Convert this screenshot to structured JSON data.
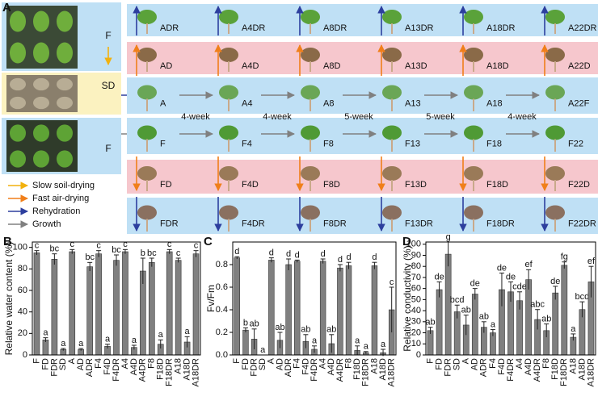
{
  "panel_a": {
    "label": "A",
    "left_labels": [
      "F",
      "SD",
      "F"
    ],
    "rows": [
      [
        "ADR",
        "A4DR",
        "A8DR",
        "A13DR",
        "A18DR",
        "A22DR"
      ],
      [
        "AD",
        "A4D",
        "A8D",
        "A13D",
        "A18D",
        "A22D"
      ],
      [
        "A",
        "A4",
        "A8",
        "A13",
        "A18",
        "A22F"
      ],
      [
        "F",
        "F4",
        "F8",
        "F13",
        "F18",
        "F22"
      ],
      [
        "FD",
        "F4D",
        "F8D",
        "F13D",
        "F18D",
        "F22D"
      ],
      [
        "FDR",
        "F4DR",
        "F8DR",
        "F13DR",
        "F18DR",
        "F22DR"
      ]
    ],
    "intervals": [
      "4-week",
      "4-week",
      "5-week",
      "5-week",
      "4-week"
    ],
    "legend": [
      {
        "name": "Slow soil-drying",
        "color": "#f2b10e"
      },
      {
        "name": "Fast air-drying",
        "color": "#f07f1a"
      },
      {
        "name": "Rehydration",
        "color": "#2d3f9e"
      },
      {
        "name": "Growth",
        "color": "#808080"
      }
    ]
  },
  "chart_data": [
    {
      "type": "bar",
      "panel": "B",
      "ylabel": "Relative water content (%)",
      "color": "#808080",
      "categories": [
        "F",
        "FD",
        "FDR",
        "SD",
        "A",
        "AD",
        "ADR",
        "F4",
        "F4D",
        "F4DR",
        "A4",
        "A4D",
        "A4DR",
        "F8",
        "F18D",
        "F18DR",
        "A18",
        "A18D",
        "A18DR"
      ],
      "values": [
        95,
        14,
        89,
        5,
        96,
        5,
        82,
        94,
        8,
        88,
        96,
        7,
        78,
        86,
        10,
        96,
        88,
        12,
        94
      ],
      "errors": [
        2,
        2,
        5,
        1,
        2,
        1,
        4,
        3,
        2,
        5,
        2,
        2,
        12,
        4,
        4,
        2,
        2,
        5,
        3
      ],
      "letters": [
        "c",
        "a",
        "bc",
        "a",
        "c",
        "a",
        "bc",
        "c",
        "a",
        "bc",
        "c",
        "a",
        "b",
        "bc",
        "a",
        "c",
        "c",
        "a",
        "c"
      ],
      "ylim": [
        0,
        105
      ],
      "yticks": [
        0,
        20,
        40,
        60,
        80,
        100
      ]
    },
    {
      "type": "bar",
      "panel": "C",
      "ylabel": "Fv/Fm",
      "color": "#808080",
      "categories": [
        "F",
        "FD",
        "FDR",
        "SD",
        "A",
        "AD",
        "ADR",
        "F4",
        "F4D",
        "F4DR",
        "A4",
        "A4D",
        "A4DR",
        "F8",
        "F18D",
        "F18DR",
        "A18",
        "A18D",
        "A18DR"
      ],
      "values": [
        0.86,
        0.22,
        0.14,
        0,
        0.84,
        0.13,
        0.8,
        0.83,
        0.12,
        0.05,
        0.83,
        0.1,
        0.77,
        0.79,
        0.04,
        0.02,
        0.79,
        0.02,
        0.4
      ],
      "errors": [
        0.01,
        0.02,
        0.09,
        0,
        0.02,
        0.07,
        0.05,
        0.01,
        0.06,
        0.03,
        0.02,
        0.08,
        0.03,
        0.03,
        0.04,
        0.01,
        0.03,
        0.03,
        0.2
      ],
      "letters": [
        "d",
        "b",
        "ab",
        "a",
        "d",
        "ab",
        "d",
        "d",
        "ab",
        "a",
        "d",
        "ab",
        "d",
        "d",
        "a",
        "a",
        "d",
        "a",
        "c"
      ],
      "ylim": [
        0,
        1.0
      ],
      "yticks": [
        {
          "value": 0,
          "label": "0.0"
        },
        0.2,
        0.4,
        0.6,
        0.8
      ]
    },
    {
      "type": "bar",
      "panel": "D",
      "ylabel": "Relative conductivity (%)",
      "color": "#808080",
      "categories": [
        "F",
        "FD",
        "FDR",
        "SD",
        "A",
        "AD",
        "ADR",
        "F4",
        "F4D",
        "F4DR",
        "A4",
        "A4D",
        "A4DR",
        "F8",
        "F18D",
        "F18DR",
        "A18",
        "A18D",
        "A18DR"
      ],
      "values": [
        22,
        59,
        91,
        39,
        27,
        55,
        25,
        20,
        59,
        57,
        49,
        68,
        32,
        22,
        56,
        81,
        16,
        41,
        66
      ],
      "errors": [
        3,
        7,
        11,
        6,
        9,
        5,
        5,
        3,
        15,
        9,
        8,
        9,
        9,
        6,
        6,
        3,
        3,
        7,
        14
      ],
      "letters": [
        "ab",
        "de",
        "g",
        "bcd",
        "ab",
        "de",
        "ab",
        "a",
        "de",
        "de",
        "cde",
        "ef",
        "abc",
        "ab",
        "de",
        "fg",
        "a",
        "bcd",
        "ef"
      ],
      "ylim": [
        0,
        102
      ],
      "yticks": [
        0,
        10,
        20,
        30,
        40,
        50,
        60,
        70,
        80,
        90,
        100
      ]
    }
  ]
}
